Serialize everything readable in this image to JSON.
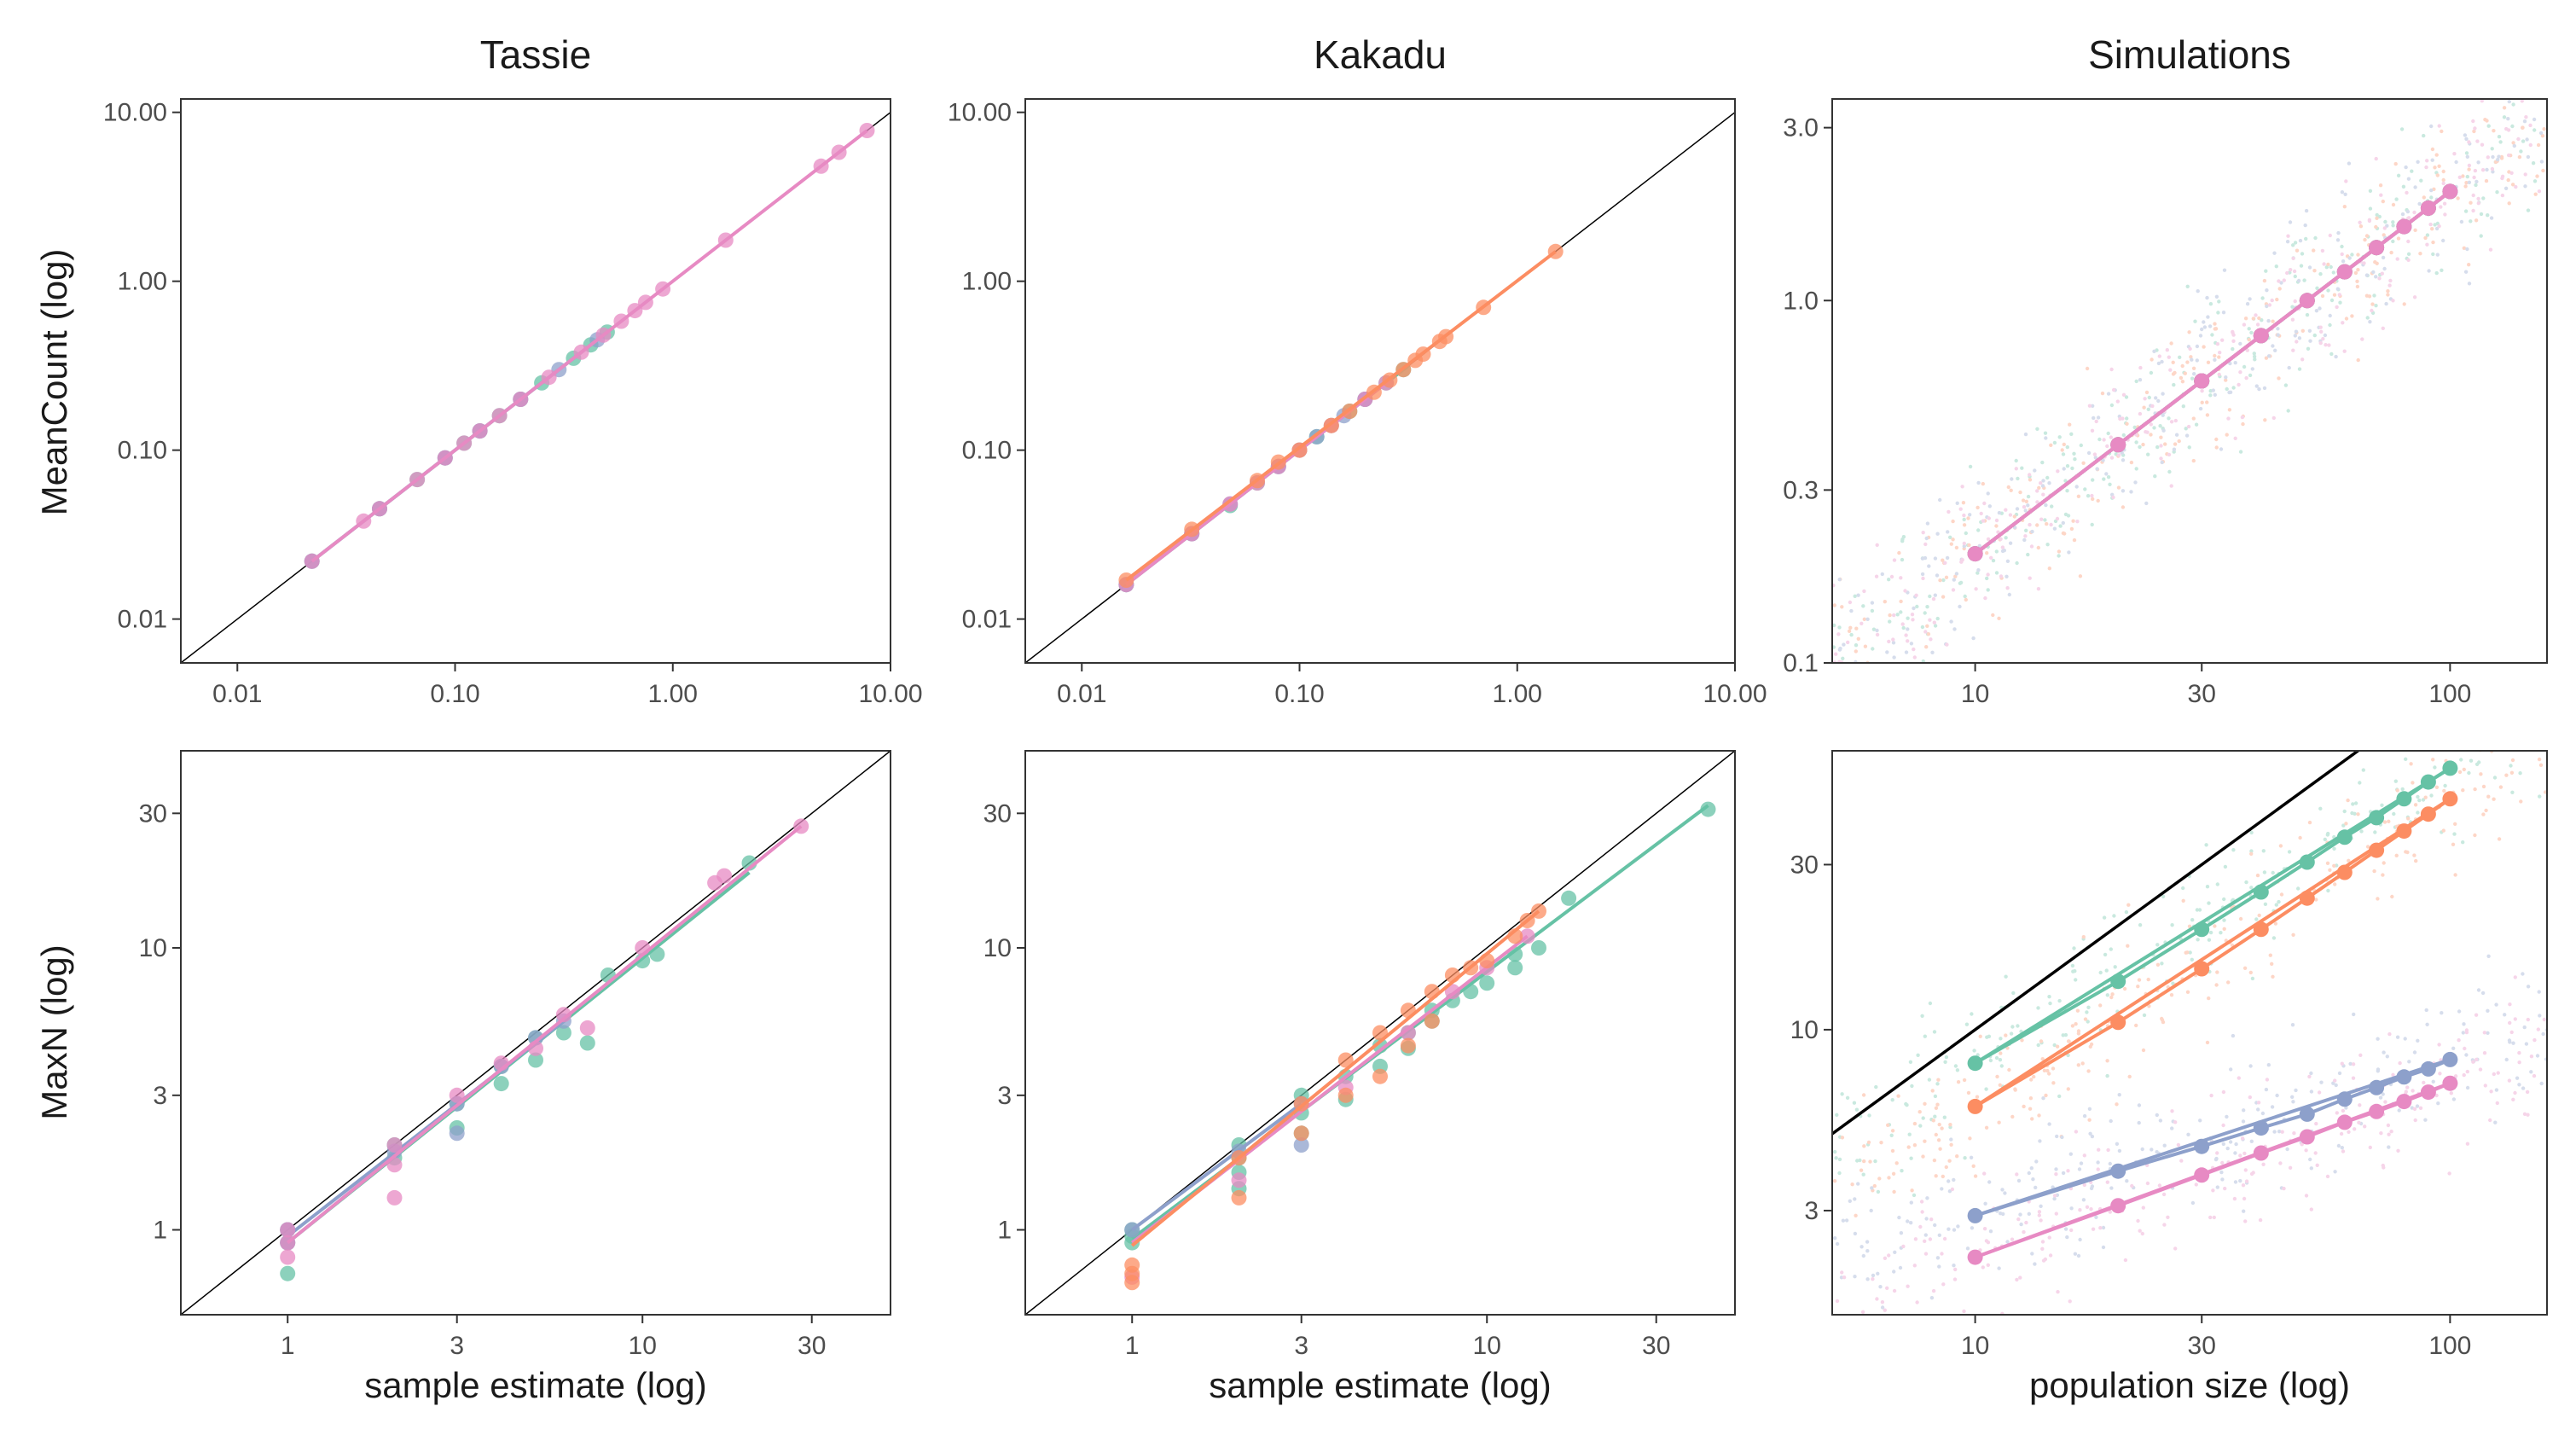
{
  "figure": {
    "column_titles": [
      "Tassie",
      "Kakadu",
      "Simulations"
    ],
    "row_labels": [
      "MeanCount (log)",
      "MaxN (log)"
    ],
    "x_labels": [
      "sample estimate (log)",
      "sample estimate (log)",
      "population size (log)"
    ]
  },
  "colors": {
    "green": "#66c2a5",
    "orange": "#fc8d62",
    "blue": "#8da0cb",
    "pink": "#e78ac3",
    "identity_line": "#000000"
  },
  "chart_data": [
    {
      "id": "tassie-meancount",
      "type": "scatter",
      "title": "Tassie",
      "xlabel": "",
      "ylabel": "MeanCount (log)",
      "log_x": true,
      "log_y": true,
      "xlim": [
        0.0055,
        10
      ],
      "ylim": [
        0.0055,
        12
      ],
      "x_ticks": [
        0.01,
        0.1,
        1,
        10
      ],
      "x_tick_labels": [
        "0.01",
        "0.10",
        "1.00",
        "10.00"
      ],
      "y_ticks": [
        0.01,
        0.1,
        1,
        10
      ],
      "y_tick_labels": [
        "0.01",
        "0.10",
        "1.00",
        "10.00"
      ],
      "identity_line": true,
      "series": [
        {
          "color": "green",
          "x": [
            0.022,
            0.045,
            0.067,
            0.09,
            0.11,
            0.13,
            0.16,
            0.2,
            0.25,
            0.35,
            0.42,
            0.5
          ],
          "y": [
            0.022,
            0.045,
            0.067,
            0.09,
            0.11,
            0.13,
            0.16,
            0.2,
            0.25,
            0.35,
            0.42,
            0.5
          ],
          "fit_x": [
            0.022,
            0.52
          ],
          "fit_y": [
            0.022,
            0.52
          ]
        },
        {
          "color": "blue",
          "x": [
            0.022,
            0.045,
            0.09,
            0.13,
            0.2,
            0.3,
            0.45
          ],
          "y": [
            0.022,
            0.045,
            0.09,
            0.13,
            0.2,
            0.3,
            0.45
          ],
          "fit_x": [
            0.022,
            0.5
          ],
          "fit_y": [
            0.022,
            0.5
          ]
        },
        {
          "color": "pink",
          "x": [
            0.022,
            0.038,
            0.045,
            0.067,
            0.09,
            0.11,
            0.13,
            0.16,
            0.2,
            0.27,
            0.38,
            0.48,
            0.58,
            0.67,
            0.75,
            0.9,
            1.75,
            4.8,
            5.8,
            7.8
          ],
          "y": [
            0.022,
            0.038,
            0.045,
            0.067,
            0.09,
            0.11,
            0.13,
            0.16,
            0.2,
            0.27,
            0.38,
            0.48,
            0.58,
            0.67,
            0.75,
            0.9,
            1.75,
            4.8,
            5.8,
            7.8
          ],
          "fit_x": [
            0.022,
            7.8
          ],
          "fit_y": [
            0.022,
            7.8
          ]
        }
      ]
    },
    {
      "id": "kakadu-meancount",
      "type": "scatter",
      "title": "Kakadu",
      "xlabel": "",
      "ylabel": "",
      "log_x": true,
      "log_y": true,
      "xlim": [
        0.0055,
        10
      ],
      "ylim": [
        0.0055,
        12
      ],
      "x_ticks": [
        0.01,
        0.1,
        1,
        10
      ],
      "x_tick_labels": [
        "0.01",
        "0.10",
        "1.00",
        "10.00"
      ],
      "y_ticks": [
        0.01,
        0.1,
        1,
        10
      ],
      "y_tick_labels": [
        "0.01",
        "0.10",
        "1.00",
        "10.00"
      ],
      "identity_line": true,
      "series": [
        {
          "color": "green",
          "x": [
            0.016,
            0.032,
            0.048,
            0.064,
            0.08,
            0.1,
            0.12,
            0.14,
            0.17,
            0.2,
            0.25,
            0.3
          ],
          "y": [
            0.016,
            0.032,
            0.047,
            0.064,
            0.08,
            0.1,
            0.12,
            0.14,
            0.17,
            0.2,
            0.25,
            0.3
          ],
          "fit_x": [
            0.016,
            0.32
          ],
          "fit_y": [
            0.016,
            0.32
          ]
        },
        {
          "color": "blue",
          "x": [
            0.016,
            0.032,
            0.048,
            0.08,
            0.12,
            0.16,
            0.2
          ],
          "y": [
            0.016,
            0.032,
            0.048,
            0.08,
            0.12,
            0.16,
            0.2
          ],
          "fit_x": [
            0.016,
            0.22
          ],
          "fit_y": [
            0.016,
            0.22
          ]
        },
        {
          "color": "pink",
          "x": [
            0.016,
            0.032,
            0.048,
            0.064,
            0.08,
            0.1,
            0.14,
            0.2,
            0.25
          ],
          "y": [
            0.016,
            0.032,
            0.048,
            0.064,
            0.08,
            0.1,
            0.14,
            0.2,
            0.25
          ],
          "fit_x": [
            0.016,
            0.26
          ],
          "fit_y": [
            0.016,
            0.26
          ]
        },
        {
          "color": "orange",
          "x": [
            0.016,
            0.032,
            0.064,
            0.08,
            0.1,
            0.14,
            0.17,
            0.22,
            0.26,
            0.3,
            0.34,
            0.37,
            0.44,
            0.47,
            0.7,
            1.5
          ],
          "y": [
            0.017,
            0.034,
            0.066,
            0.085,
            0.1,
            0.14,
            0.17,
            0.22,
            0.26,
            0.3,
            0.34,
            0.37,
            0.44,
            0.47,
            0.7,
            1.5
          ],
          "fit_x": [
            0.016,
            1.5
          ],
          "fit_y": [
            0.017,
            1.5
          ]
        }
      ]
    },
    {
      "id": "simulations-meancount",
      "type": "scatter",
      "title": "Simulations",
      "xlabel": "",
      "ylabel": "",
      "log_x": true,
      "log_y": true,
      "xlim": [
        5,
        160
      ],
      "ylim": [
        0.1,
        3.6
      ],
      "x_ticks": [
        10,
        30,
        100
      ],
      "x_tick_labels": [
        "10",
        "30",
        "100"
      ],
      "y_ticks": [
        0.1,
        0.3,
        1,
        3
      ],
      "y_tick_labels": [
        "0.1",
        "0.3",
        "1.0",
        "3.0"
      ],
      "identity_line": true,
      "background_cloud": "dense scatter of simulated replicates in all four colors around the identity line",
      "series": [
        {
          "color": "green",
          "x": [
            10,
            20,
            30,
            40,
            50,
            60,
            70,
            80,
            90,
            100
          ],
          "y": [
            0.2,
            0.4,
            0.6,
            0.8,
            1.0,
            1.2,
            1.4,
            1.6,
            1.8,
            2.0
          ],
          "fit_x": [
            10,
            100
          ],
          "fit_y": [
            0.2,
            2.0
          ]
        },
        {
          "color": "orange",
          "x": [
            10,
            20,
            30,
            40,
            50,
            60,
            70,
            80,
            90,
            100
          ],
          "y": [
            0.2,
            0.4,
            0.6,
            0.8,
            1.0,
            1.2,
            1.4,
            1.6,
            1.8,
            2.0
          ],
          "fit_x": [
            10,
            100
          ],
          "fit_y": [
            0.2,
            2.0
          ]
        },
        {
          "color": "blue",
          "x": [
            10,
            20,
            30,
            40,
            50,
            60,
            70,
            80,
            90,
            100
          ],
          "y": [
            0.2,
            0.4,
            0.6,
            0.8,
            1.0,
            1.2,
            1.4,
            1.6,
            1.8,
            2.0
          ],
          "fit_x": [
            10,
            100
          ],
          "fit_y": [
            0.2,
            2.0
          ]
        },
        {
          "color": "pink",
          "x": [
            10,
            20,
            30,
            40,
            50,
            60,
            70,
            80,
            90,
            100
          ],
          "y": [
            0.2,
            0.4,
            0.6,
            0.8,
            1.0,
            1.2,
            1.4,
            1.6,
            1.8,
            2.0
          ],
          "fit_x": [
            10,
            100
          ],
          "fit_y": [
            0.2,
            2.0
          ]
        }
      ]
    },
    {
      "id": "tassie-maxn",
      "type": "scatter",
      "title": "",
      "xlabel": "sample estimate (log)",
      "ylabel": "MaxN (log)",
      "log_x": true,
      "log_y": true,
      "xlim": [
        0.5,
        50
      ],
      "ylim": [
        0.5,
        50
      ],
      "x_ticks": [
        1,
        3,
        10,
        30
      ],
      "x_tick_labels": [
        "1",
        "3",
        "10",
        "30"
      ],
      "y_ticks": [
        1,
        3,
        10,
        30
      ],
      "y_tick_labels": [
        "1",
        "3",
        "10",
        "30"
      ],
      "identity_line": true,
      "series": [
        {
          "color": "green",
          "x": [
            1,
            1,
            1,
            2,
            2,
            3,
            3,
            4,
            4,
            5,
            5,
            6,
            7,
            8,
            10,
            11,
            20
          ],
          "y": [
            0.7,
            0.9,
            1.0,
            1.8,
            2.0,
            2.3,
            2.8,
            3.3,
            3.8,
            4.0,
            4.8,
            5.0,
            4.6,
            8.0,
            9.0,
            9.5,
            20.0
          ],
          "fit_x": [
            1,
            20
          ],
          "fit_y": [
            0.9,
            18.5
          ]
        },
        {
          "color": "blue",
          "x": [
            1,
            1,
            2,
            3,
            3,
            4,
            5,
            6
          ],
          "y": [
            0.9,
            1.0,
            1.9,
            2.2,
            2.8,
            3.8,
            4.8,
            5.5
          ],
          "fit_x": [
            1,
            6
          ],
          "fit_y": [
            0.95,
            5.5
          ]
        },
        {
          "color": "pink",
          "x": [
            1,
            1,
            1,
            2,
            2,
            2,
            3,
            4,
            5,
            6,
            7,
            10,
            16,
            17,
            28
          ],
          "y": [
            0.8,
            0.9,
            1.0,
            1.3,
            1.7,
            2.0,
            3.0,
            3.9,
            4.4,
            5.8,
            5.2,
            10.0,
            17.0,
            18.0,
            27.0
          ],
          "fit_x": [
            1,
            28
          ],
          "fit_y": [
            0.9,
            27
          ]
        }
      ]
    },
    {
      "id": "kakadu-maxn",
      "type": "scatter",
      "title": "",
      "xlabel": "sample estimate (log)",
      "ylabel": "",
      "log_x": true,
      "log_y": true,
      "xlim": [
        0.5,
        50
      ],
      "ylim": [
        0.5,
        50
      ],
      "x_ticks": [
        1,
        3,
        10,
        30
      ],
      "x_tick_labels": [
        "1",
        "3",
        "10",
        "30"
      ],
      "y_ticks": [
        1,
        3,
        10,
        30
      ],
      "y_tick_labels": [
        "1",
        "3",
        "10",
        "30"
      ],
      "identity_line": true,
      "series": [
        {
          "color": "green",
          "x": [
            1,
            1,
            1,
            2,
            2,
            2,
            2,
            3,
            3,
            3,
            4,
            4,
            5,
            5,
            6,
            6,
            7,
            7,
            8,
            9,
            10,
            12,
            12,
            14,
            17,
            42
          ],
          "y": [
            0.9,
            1.0,
            0.95,
            1.4,
            1.6,
            1.8,
            2.0,
            2.2,
            2.6,
            3.0,
            2.9,
            3.5,
            3.8,
            4.5,
            4.4,
            5.0,
            5.5,
            6.0,
            6.5,
            7.0,
            7.5,
            8.5,
            9.5,
            10.0,
            15.0,
            31.0
          ],
          "fit_x": [
            1,
            42
          ],
          "fit_y": [
            0.93,
            32
          ]
        },
        {
          "color": "blue",
          "x": [
            1,
            2,
            3,
            3
          ],
          "y": [
            1.0,
            1.9,
            2.0,
            2.8
          ],
          "fit_x": [
            1,
            3
          ],
          "fit_y": [
            1.0,
            2.8
          ]
        },
        {
          "color": "pink",
          "x": [
            1,
            2,
            4,
            6,
            8,
            10,
            13
          ],
          "y": [
            0.68,
            1.5,
            3.2,
            5.0,
            7.0,
            8.5,
            11.0
          ],
          "fit_x": [
            1,
            13
          ],
          "fit_y": [
            0.9,
            11.0
          ]
        },
        {
          "color": "orange",
          "x": [
            1,
            1,
            1,
            2,
            2,
            3,
            3,
            4,
            4,
            5,
            5,
            6,
            6,
            7,
            7,
            8,
            9,
            10,
            12,
            13,
            14
          ],
          "y": [
            0.65,
            0.7,
            0.75,
            1.3,
            1.8,
            2.2,
            2.8,
            3.0,
            4.0,
            3.5,
            5.0,
            4.5,
            6.0,
            5.5,
            7.0,
            8.0,
            8.5,
            9.0,
            11.0,
            12.5,
            13.5
          ],
          "fit_x": [
            1,
            14
          ],
          "fit_y": [
            0.88,
            13.5
          ]
        }
      ]
    },
    {
      "id": "simulations-maxn",
      "type": "scatter",
      "title": "",
      "xlabel": "population size (log)",
      "ylabel": "",
      "log_x": true,
      "log_y": true,
      "xlim": [
        5,
        160
      ],
      "ylim": [
        1.5,
        64
      ],
      "x_ticks": [
        10,
        30,
        100
      ],
      "x_tick_labels": [
        "10",
        "30",
        "100"
      ],
      "y_ticks": [
        3,
        10,
        30
      ],
      "y_tick_labels": [
        "3",
        "10",
        "30"
      ],
      "identity_line": true,
      "background_cloud": "dense scatter of simulated replicates in all four colors; green and orange above the identity line, blue and pink below",
      "series": [
        {
          "color": "green",
          "x": [
            10,
            20,
            30,
            40,
            50,
            60,
            70,
            80,
            90,
            100
          ],
          "y": [
            8.0,
            13.8,
            19.5,
            25.0,
            30.5,
            36.0,
            41.0,
            46.5,
            52.0,
            57.0
          ],
          "fit_x": [
            10,
            100
          ],
          "fit_y": [
            8.0,
            57.0
          ]
        },
        {
          "color": "orange",
          "x": [
            10,
            20,
            30,
            40,
            50,
            60,
            70,
            80,
            90,
            100
          ],
          "y": [
            6.0,
            10.5,
            15.0,
            19.5,
            24.0,
            28.5,
            33.0,
            37.5,
            42.0,
            46.5
          ],
          "fit_x": [
            10,
            100
          ],
          "fit_y": [
            6.0,
            46.5
          ]
        },
        {
          "color": "blue",
          "x": [
            10,
            20,
            30,
            40,
            50,
            60,
            70,
            80,
            90,
            100
          ],
          "y": [
            2.9,
            3.9,
            4.6,
            5.2,
            5.7,
            6.3,
            6.8,
            7.3,
            7.7,
            8.2
          ],
          "fit_x": [
            10,
            100
          ],
          "fit_y": [
            2.9,
            8.2
          ]
        },
        {
          "color": "pink",
          "x": [
            10,
            20,
            30,
            40,
            50,
            60,
            70,
            80,
            90,
            100
          ],
          "y": [
            2.2,
            3.1,
            3.8,
            4.4,
            4.9,
            5.4,
            5.8,
            6.2,
            6.6,
            7.0
          ],
          "fit_x": [
            10,
            100
          ],
          "fit_y": [
            2.2,
            7.0
          ]
        }
      ]
    }
  ]
}
